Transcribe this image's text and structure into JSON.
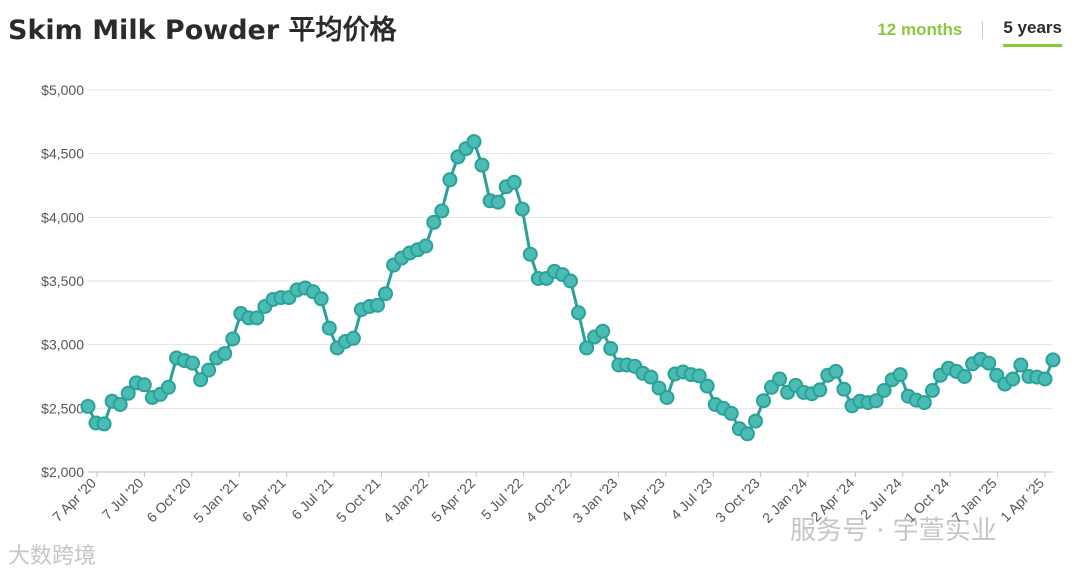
{
  "header": {
    "title": "Skim Milk Powder 平均价格",
    "tabs": [
      "12 months",
      "5 years"
    ],
    "active_tab": "5 years"
  },
  "colors": {
    "series": "#2aa198",
    "marker_fill": "#4bbcb4",
    "accent": "#8cc63f"
  },
  "watermarks": {
    "left": "大数跨境",
    "right": "服务号 · 宇萱实业"
  },
  "chart_data": {
    "type": "line",
    "title": "Skim Milk Powder 平均价格",
    "xlabel": "",
    "ylabel": "",
    "ylim": [
      2000,
      5000
    ],
    "yticks": [
      2000,
      2500,
      3000,
      3500,
      4000,
      4500,
      5000
    ],
    "ytick_labels": [
      "$2,000",
      "$2,500",
      "$3,000",
      "$3,500",
      "$4,000",
      "$4,500",
      "$5,000"
    ],
    "xtick_labels": [
      "7 Apr '20",
      "7 Jul '20",
      "6 Oct '20",
      "5 Jan '21",
      "6 Apr '21",
      "6 Jul '21",
      "5 Oct '21",
      "4 Jan '22",
      "5 Apr '22",
      "5 Jul '22",
      "4 Oct '22",
      "3 Jan '23",
      "4 Apr '23",
      "4 Jul '23",
      "3 Oct '23",
      "2 Jan '24",
      "2 Apr '24",
      "2 Jul '24",
      "1 Oct '24",
      "7 Jan '25",
      "1 Apr '25"
    ],
    "grid": true,
    "series": [
      {
        "values": [
          2515,
          2385,
          2378,
          2555,
          2530,
          2618,
          2700,
          2685,
          2585,
          2610,
          2665,
          2895,
          2875,
          2855,
          2725,
          2800,
          2895,
          2930,
          3045,
          3245,
          3210,
          3210,
          3300,
          3355,
          3370,
          3370,
          3430,
          3445,
          3415,
          3360,
          3130,
          2975,
          3025,
          3050,
          3275,
          3300,
          3310,
          3400,
          3625,
          3680,
          3720,
          3745,
          3775,
          3960,
          4050,
          4295,
          4475,
          4540,
          4595,
          4410,
          4130,
          4120,
          4240,
          4275,
          4065,
          3710,
          3520,
          3520,
          3575,
          3550,
          3500,
          3250,
          2975,
          3060,
          3105,
          2970,
          2840,
          2840,
          2830,
          2775,
          2745,
          2660,
          2585,
          2770,
          2785,
          2765,
          2755,
          2675,
          2530,
          2500,
          2460,
          2340,
          2300,
          2400,
          2560,
          2665,
          2730,
          2625,
          2680,
          2625,
          2615,
          2645,
          2760,
          2790,
          2650,
          2520,
          2555,
          2545,
          2560,
          2640,
          2725,
          2765,
          2595,
          2565,
          2545,
          2640,
          2760,
          2815,
          2790,
          2750,
          2850,
          2885,
          2855,
          2760,
          2690,
          2730,
          2840,
          2750,
          2745,
          2730,
          2880
        ]
      }
    ]
  }
}
